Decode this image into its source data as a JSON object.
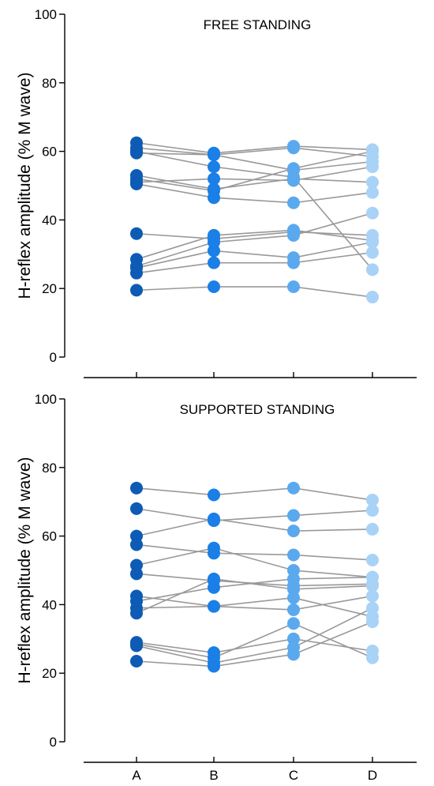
{
  "colors": {
    "A": "#0d5bb5",
    "B": "#1a7fe6",
    "C": "#5aa9ee",
    "D": "#a9d2f7",
    "connector": "#999999",
    "axis": "#000000"
  },
  "chart_data": [
    {
      "type": "scatter",
      "title": "FREE STANDING",
      "xlabel": "",
      "ylabel": "H-reflex amplitude (% M wave)",
      "categories": [
        "A",
        "B",
        "C",
        "D"
      ],
      "ylim": [
        0,
        100
      ],
      "yticks": [
        0,
        20,
        40,
        60,
        80,
        100
      ],
      "show_x_tick_labels": false,
      "grid": false,
      "series": [
        {
          "values": [
            62.5,
            59.5,
            61.5,
            60.5
          ]
        },
        {
          "values": [
            61.0,
            59.0,
            61.0,
            58.5
          ]
        },
        {
          "values": [
            59.5,
            59.0,
            54.5,
            57.0
          ]
        },
        {
          "values": [
            53.0,
            49.0,
            52.0,
            51.0
          ]
        },
        {
          "values": [
            52.0,
            48.5,
            55.0,
            60.0
          ]
        },
        {
          "values": [
            51.0,
            52.0,
            51.5,
            55.5
          ]
        },
        {
          "values": [
            50.5,
            46.5,
            45.0,
            48.0
          ]
        },
        {
          "values": [
            60.0,
            55.5,
            52.5,
            25.5
          ]
        },
        {
          "values": [
            36.0,
            34.5,
            36.5,
            35.5
          ]
        },
        {
          "values": [
            28.5,
            35.5,
            37.0,
            34.0
          ]
        },
        {
          "values": [
            26.0,
            31.0,
            29.0,
            33.5
          ]
        },
        {
          "values": [
            24.5,
            27.5,
            27.5,
            30.5
          ]
        },
        {
          "values": [
            26.5,
            33.5,
            35.5,
            42.0
          ]
        },
        {
          "values": [
            19.5,
            20.5,
            20.5,
            17.5
          ]
        }
      ]
    },
    {
      "type": "scatter",
      "title": "SUPPORTED STANDING",
      "xlabel": "",
      "ylabel": "H-reflex amplitude (% M wave)",
      "categories": [
        "A",
        "B",
        "C",
        "D"
      ],
      "ylim": [
        0,
        100
      ],
      "yticks": [
        0,
        20,
        40,
        60,
        80,
        100
      ],
      "show_x_tick_labels": true,
      "grid": false,
      "series": [
        {
          "values": [
            74.0,
            72.0,
            74.0,
            70.5
          ]
        },
        {
          "values": [
            68.0,
            64.5,
            66.0,
            67.5
          ]
        },
        {
          "values": [
            60.0,
            65.0,
            61.5,
            62.0
          ]
        },
        {
          "values": [
            57.5,
            55.0,
            54.5,
            53.0
          ]
        },
        {
          "values": [
            51.5,
            56.5,
            50.0,
            48.0
          ]
        },
        {
          "values": [
            49.0,
            47.0,
            45.5,
            46.0
          ]
        },
        {
          "values": [
            42.5,
            39.5,
            42.0,
            36.5
          ]
        },
        {
          "values": [
            41.0,
            45.0,
            47.5,
            48.0
          ]
        },
        {
          "values": [
            39.0,
            39.5,
            38.5,
            42.5
          ]
        },
        {
          "values": [
            37.5,
            47.5,
            44.5,
            45.5
          ]
        },
        {
          "values": [
            29.0,
            26.0,
            30.0,
            26.5
          ]
        },
        {
          "values": [
            28.5,
            24.5,
            34.5,
            24.5
          ]
        },
        {
          "values": [
            23.5,
            22.0,
            25.5,
            35.0
          ]
        },
        {
          "values": [
            28.0,
            23.0,
            27.5,
            39.0
          ]
        }
      ]
    }
  ]
}
